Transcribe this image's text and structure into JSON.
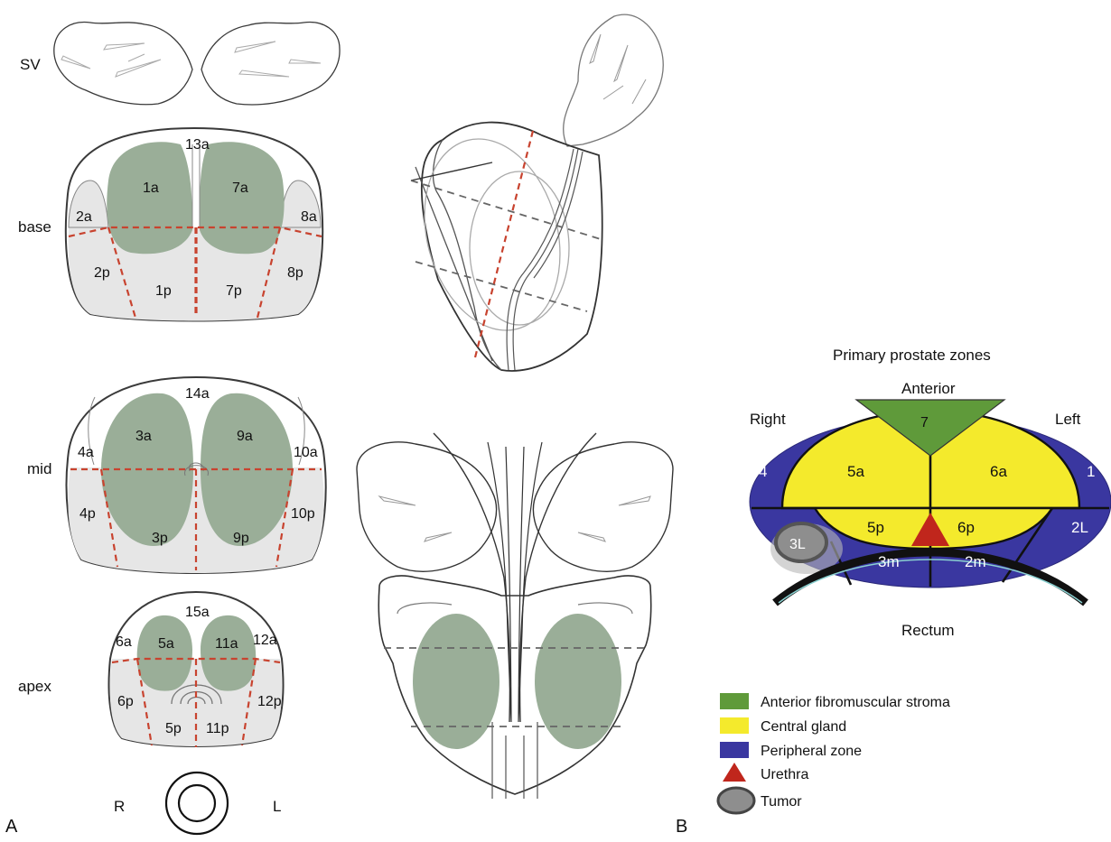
{
  "panels": {
    "a": "A",
    "b": "B"
  },
  "left_panel": {
    "row_labels": {
      "sv": "SV",
      "base": "base",
      "mid": "mid",
      "apex": "apex"
    },
    "base": {
      "1a": "1a",
      "7a": "7a",
      "13a": "13a",
      "2a": "2a",
      "8a": "8a",
      "2p": "2p",
      "1p": "1p",
      "7p": "7p",
      "8p": "8p"
    },
    "mid": {
      "3a": "3a",
      "9a": "9a",
      "14a": "14a",
      "4a": "4a",
      "10a": "10a",
      "4p": "4p",
      "3p": "3p",
      "9p": "9p",
      "10p": "10p"
    },
    "apex": {
      "5a": "5a",
      "11a": "11a",
      "15a": "15a",
      "6a": "6a",
      "12a": "12a",
      "6p": "6p",
      "5p": "5p",
      "11p": "11p",
      "12p": "12p"
    },
    "orientation": {
      "r": "R",
      "l": "L"
    }
  },
  "zones_diagram": {
    "title": "Primary prostate zones",
    "anterior": "Anterior",
    "right": "Right",
    "left": "Left",
    "rectum": "Rectum",
    "zones": {
      "z7": "7",
      "z5a": "5a",
      "z6a": "6a",
      "z5p": "5p",
      "z6p": "6p",
      "z3m": "3m",
      "z2m": "2m",
      "z4": "4",
      "z1": "1",
      "z2l": "2L",
      "z3l": "3L"
    },
    "legend": [
      {
        "label": "Anterior fibromuscular stroma",
        "color": "#5f9a3a"
      },
      {
        "label": "Central gland",
        "color": "#f4ea2c"
      },
      {
        "label": "Peripheral zone",
        "color": "#3a37a0"
      },
      {
        "label": "Urethra",
        "color": "#c0261c"
      },
      {
        "label": "Tumor",
        "color": "#8e8e8e"
      }
    ]
  },
  "colors": {
    "lobe_green": "#9aae98",
    "shade": "#e6e6e6",
    "dash_red": "#c8432f",
    "dash_gray": "#707070",
    "outline": "#3a3a3a"
  }
}
